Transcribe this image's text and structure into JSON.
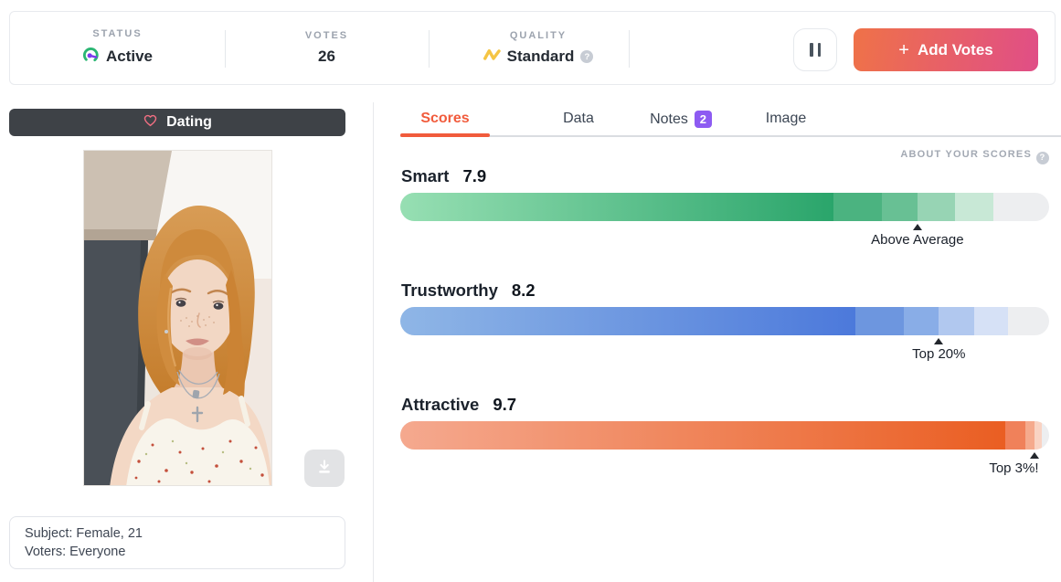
{
  "theme": {
    "accent": "#F15B3C",
    "badge_purple": "#8D5BF2",
    "add_votes_from": "#EF7248",
    "add_votes_to": "#E04E87",
    "heart_pink": "#F06F82",
    "status_green": "#2BB673",
    "needle_purple": "#7C3AED",
    "quality_gold": "#F5C544",
    "banner_dark": "#3E4247"
  },
  "header": {
    "stats": [
      {
        "label": "STATUS",
        "value": "Active",
        "icon": "gauge-icon"
      },
      {
        "label": "VOTES",
        "value": "26",
        "icon": ""
      },
      {
        "label": "QUALITY",
        "value": "Standard",
        "icon": "zigzag-icon",
        "help": "?"
      }
    ],
    "pause_icon": "pause-icon",
    "add_votes": {
      "plus": "+",
      "label": "Add Votes"
    }
  },
  "left_panel": {
    "category_label": "Dating",
    "subject_line": "Subject: Female, 21",
    "voters_line": "Voters: Everyone"
  },
  "tabs": [
    {
      "label": "Scores",
      "active": true
    },
    {
      "label": "Data"
    },
    {
      "label": "Notes",
      "badge": "2"
    },
    {
      "label": "Image"
    }
  ],
  "about_scores_label": "ABOUT YOUR SCORES",
  "scores": [
    {
      "trait": "Smart",
      "value": "7.9",
      "marker_pct": 79.7,
      "marker_label": "Above Average",
      "label_shift": "-50%",
      "bar": {
        "track": "#EDEEF0",
        "gradient_from": "#97DFB3",
        "gradient_to": "#2AA56B",
        "gradient_end": 66.8,
        "segments": [
          {
            "start": 66.8,
            "end": 74.2,
            "color": "#4BB380"
          },
          {
            "start": 74.2,
            "end": 79.7,
            "color": "#68C094"
          },
          {
            "start": 79.7,
            "end": 85.5,
            "color": "#97D4B4"
          },
          {
            "start": 85.5,
            "end": 91.4,
            "color": "#C8E8D6"
          }
        ]
      }
    },
    {
      "trait": "Trustworthy",
      "value": "8.2",
      "marker_pct": 83.0,
      "marker_label": "Top 20%",
      "label_shift": "-50%",
      "bar": {
        "track": "#EDEEF0",
        "gradient_from": "#8FB6E6",
        "gradient_to": "#4C79DB",
        "gradient_end": 70.1,
        "segments": [
          {
            "start": 70.1,
            "end": 77.6,
            "color": "#6D96DF"
          },
          {
            "start": 77.6,
            "end": 83.0,
            "color": "#89ADE7"
          },
          {
            "start": 83.0,
            "end": 88.5,
            "color": "#B1C8EF"
          },
          {
            "start": 88.5,
            "end": 93.7,
            "color": "#D6E1F6"
          }
        ]
      }
    },
    {
      "trait": "Attractive",
      "value": "9.7",
      "marker_pct": 97.7,
      "marker_label": "Top 3%!",
      "label_shift": "-91%",
      "bar": {
        "track": "#EDEEF0",
        "gradient_from": "#F5A98F",
        "gradient_to": "#EA5E22",
        "gradient_end": 93.2,
        "segments": [
          {
            "start": 93.2,
            "end": 96.3,
            "color": "#F0815A"
          },
          {
            "start": 96.3,
            "end": 97.7,
            "color": "#F5AA8D"
          },
          {
            "start": 97.7,
            "end": 98.9,
            "color": "#F9D3C3"
          }
        ]
      }
    }
  ]
}
